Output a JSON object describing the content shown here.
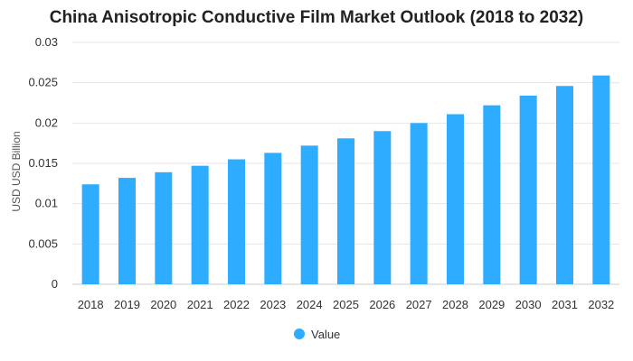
{
  "chart_data": {
    "type": "bar",
    "title": "China Anisotropic Conductive Film Market Outlook (2018 to 2032)",
    "xlabel": "",
    "ylabel": "USD USD Billion",
    "ylim": [
      0,
      0.03
    ],
    "yticks": [
      "0",
      "0.005",
      "0.01",
      "0.015",
      "0.02",
      "0.025",
      "0.03"
    ],
    "categories": [
      "2018",
      "2019",
      "2020",
      "2021",
      "2022",
      "2023",
      "2024",
      "2025",
      "2026",
      "2027",
      "2028",
      "2029",
      "2030",
      "2031",
      "2032"
    ],
    "series": [
      {
        "name": "Value",
        "color": "#2eacff",
        "values": [
          0.0124,
          0.0132,
          0.0139,
          0.0147,
          0.0155,
          0.0163,
          0.0172,
          0.0181,
          0.019,
          0.02,
          0.0211,
          0.0222,
          0.0234,
          0.0246,
          0.0259
        ]
      }
    ],
    "grid": true,
    "legend": "bottom-center"
  }
}
